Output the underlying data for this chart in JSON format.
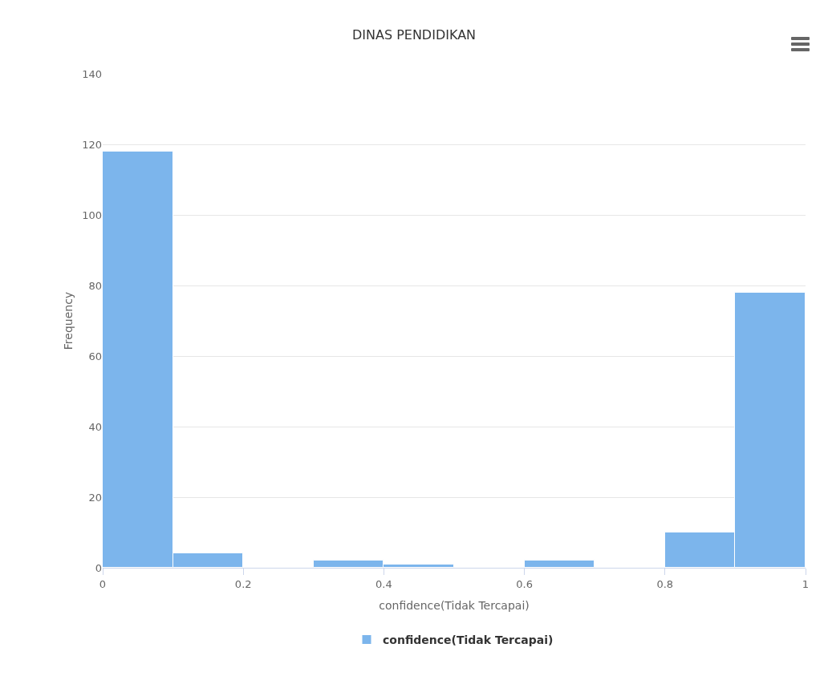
{
  "chart_data": {
    "type": "histogram",
    "title": "DINAS PENDIDIKAN",
    "xlabel": "confidence(Tidak Tercapai)",
    "ylabel": "Frequency",
    "bins": [
      0,
      0.1,
      0.2,
      0.3,
      0.4,
      0.5,
      0.6,
      0.7,
      0.8,
      0.9,
      1
    ],
    "series": [
      {
        "name": "confidence(Tidak Tercapai)",
        "color": "#7cb5ec",
        "values": [
          118,
          4,
          0,
          2,
          1,
          0,
          2,
          0,
          10,
          78
        ]
      }
    ],
    "xlim": [
      0,
      1
    ],
    "xticks": [
      0,
      0.2,
      0.4,
      0.6,
      0.8,
      1
    ],
    "ylim": [
      0,
      140
    ],
    "yticks": [
      0,
      20,
      40,
      60,
      80,
      100,
      120,
      140
    ],
    "grid": "y",
    "legend": "bottom"
  }
}
